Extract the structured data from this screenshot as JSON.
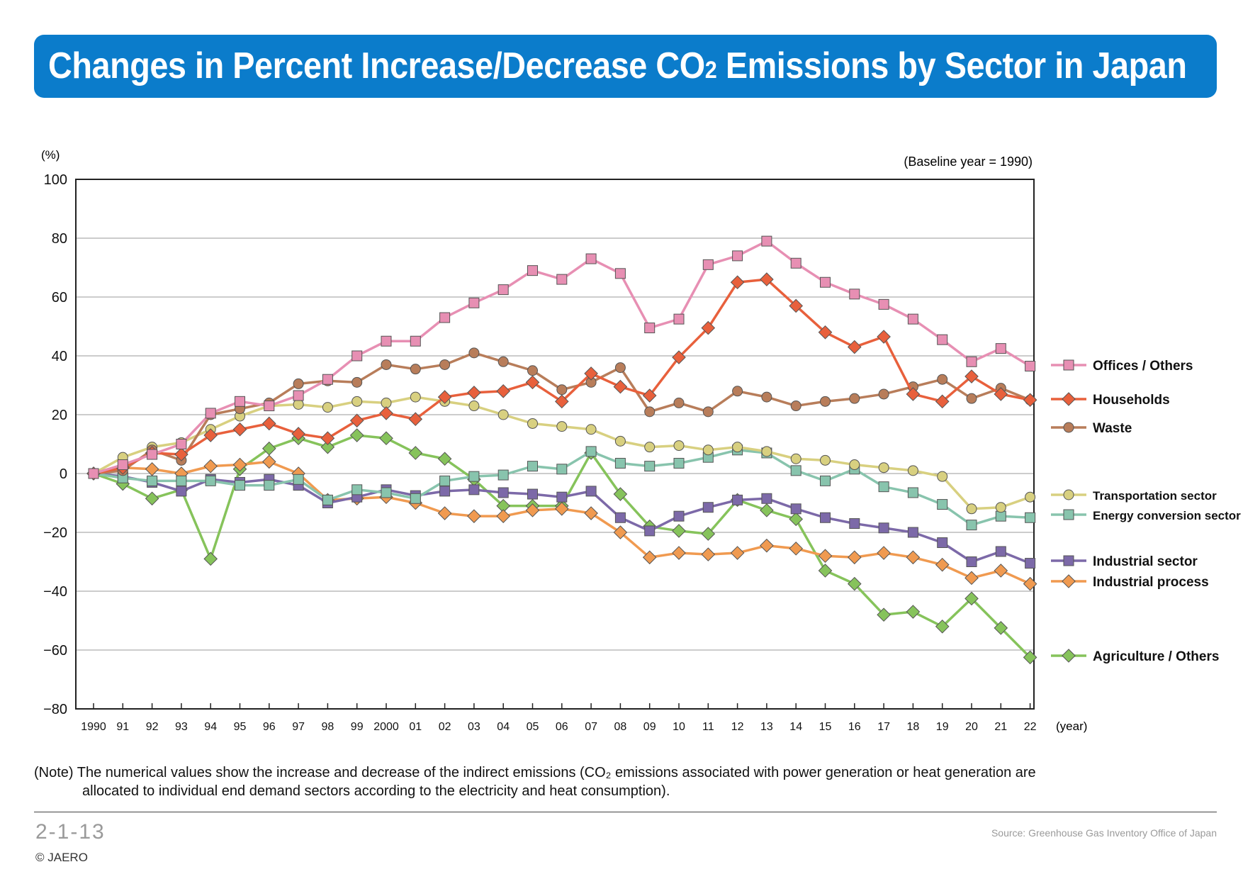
{
  "header": {
    "title_pre": "Changes in Percent Increase/Decrease CO",
    "title_sub": "2",
    "title_post": " Emissions by Sector in Japan"
  },
  "note": {
    "line1": "(Note) The numerical values show the increase and decrease of the indirect emissions (CO₂ emissions associated with power generation or heat generation are",
    "line2": "allocated to individual end demand sectors according to the electricity and heat consumption)."
  },
  "footer": {
    "figure_code": "2-1-13",
    "copyright": "© JAERO",
    "source": "Source: Greenhouse Gas Inventory Office of Japan"
  },
  "chart_data": {
    "type": "line",
    "title": "Changes in Percent Increase/Decrease CO₂ Emissions by Sector in Japan",
    "ylabel": "(%)",
    "xlabel": "(year)",
    "baseline_note": "(Baseline year = 1990)",
    "ylim": [
      -80,
      100
    ],
    "yticks": [
      100,
      80,
      60,
      40,
      20,
      0,
      -20,
      -40,
      -60,
      -80
    ],
    "ytick_labels": [
      "100",
      "80",
      "60",
      "40",
      "20",
      "0",
      "−20",
      "−40",
      "−60",
      "−80"
    ],
    "categories": [
      "1990",
      "91",
      "92",
      "93",
      "94",
      "95",
      "96",
      "97",
      "98",
      "99",
      "2000",
      "01",
      "02",
      "03",
      "04",
      "05",
      "06",
      "07",
      "08",
      "09",
      "10",
      "11",
      "12",
      "13",
      "14",
      "15",
      "16",
      "17",
      "18",
      "19",
      "20",
      "21",
      "22"
    ],
    "grid": "horizontal",
    "legend_position": "right",
    "series": [
      {
        "name": "Offices / Others",
        "color": "#e78fb3",
        "marker": "square",
        "values": [
          0,
          3,
          6.5,
          10,
          20.5,
          24.5,
          23,
          26.5,
          32,
          40,
          45,
          45,
          53,
          58,
          62.5,
          69,
          66,
          73,
          68,
          49.5,
          52.5,
          71,
          74,
          79,
          71.5,
          65,
          61,
          57.5,
          52.5,
          45.5,
          38,
          42.5,
          36.5
        ]
      },
      {
        "name": "Households",
        "color": "#e8603c",
        "marker": "diamond",
        "values": [
          0,
          2,
          7,
          6.5,
          13,
          15,
          17,
          13.5,
          12,
          18,
          20.5,
          18.5,
          26,
          27.5,
          28,
          31,
          24.5,
          34,
          29.5,
          26.5,
          39.5,
          49.5,
          65,
          66,
          57,
          48,
          43,
          46.5,
          27,
          24.5,
          33,
          27,
          25
        ]
      },
      {
        "name": "Waste",
        "color": "#b87d5a",
        "marker": "circle",
        "values": [
          0,
          1,
          8,
          4.5,
          20,
          22,
          24,
          30.5,
          31.5,
          31,
          37,
          35.5,
          37,
          41,
          38,
          35,
          28.5,
          31,
          36,
          21,
          24,
          21,
          28,
          26,
          23,
          24.5,
          25.5,
          27,
          29.5,
          32,
          25.5,
          29,
          25
        ]
      },
      {
        "name": "Transportation sector",
        "color": "#d8d080",
        "marker": "circle",
        "values": [
          0,
          5.5,
          9,
          10.5,
          15,
          19.5,
          23,
          23.5,
          22.5,
          24.5,
          24,
          26,
          24.5,
          23,
          20,
          17,
          16,
          15,
          11,
          9,
          9.5,
          8,
          9,
          7.5,
          5,
          4.5,
          3,
          2,
          1,
          -1,
          -12,
          -11.5,
          -8
        ]
      },
      {
        "name": "Energy conversion sector",
        "color": "#88c4ad",
        "marker": "square",
        "values": [
          0,
          -1.5,
          -2.5,
          -2.5,
          -2.5,
          -4,
          -4,
          -2,
          -9,
          -5.5,
          -6.5,
          -8.5,
          -2.5,
          -1,
          -0.5,
          2.5,
          1.5,
          7.5,
          3.5,
          2.5,
          3.5,
          5.5,
          8,
          7,
          1,
          -2.5,
          1.5,
          -4.5,
          -6.5,
          -10.5,
          -17.5,
          -14.5,
          -15
        ]
      },
      {
        "name": "Industrial sector",
        "color": "#7c69a8",
        "marker": "square",
        "values": [
          0,
          -1,
          -3,
          -6,
          -2,
          -3,
          -2,
          -4,
          -10,
          -8,
          -5.5,
          -7.5,
          -6,
          -5.5,
          -6.5,
          -7,
          -8,
          -6,
          -15,
          -19.5,
          -14.5,
          -11.5,
          -9,
          -8.5,
          -12,
          -15,
          -17,
          -18.5,
          -20,
          -23.5,
          -30,
          -26.5,
          -30.5
        ]
      },
      {
        "name": "Industrial process",
        "color": "#f09a50",
        "marker": "diamond",
        "values": [
          0,
          2,
          1.5,
          0,
          2.5,
          3,
          4,
          0,
          -9,
          -8.5,
          -8,
          -10,
          -13.5,
          -14.5,
          -14.5,
          -12.5,
          -12,
          -13.5,
          -20,
          -28.5,
          -27,
          -27.5,
          -27,
          -24.5,
          -25.5,
          -28,
          -28.5,
          -27,
          -28.5,
          -31,
          -35.5,
          -33,
          -37.5
        ]
      },
      {
        "name": "Agriculture / Others",
        "color": "#86c35b",
        "marker": "diamond",
        "values": [
          0,
          -3.5,
          -8.5,
          -5.5,
          -29,
          1.5,
          8.5,
          12,
          9,
          13,
          12,
          7,
          5,
          -2,
          -11,
          -11,
          -11,
          7,
          -7,
          -18,
          -19.5,
          -20.5,
          -9,
          -12.5,
          -15.5,
          -33,
          -37.5,
          -48,
          -47,
          -52,
          -42.5,
          -52.5,
          -62.5
        ]
      }
    ]
  }
}
